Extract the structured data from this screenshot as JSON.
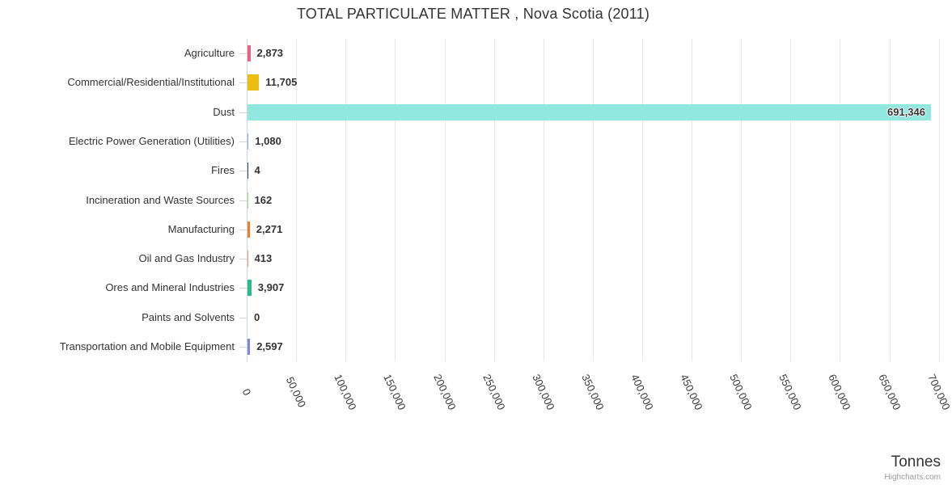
{
  "chart": {
    "title": "TOTAL PARTICULATE MATTER , Nova Scotia (2011)",
    "axis_title": "Tonnes",
    "credits": "Highcharts.com"
  },
  "chart_data": {
    "type": "bar",
    "orientation": "horizontal",
    "title": "TOTAL PARTICULATE MATTER , Nova Scotia (2011)",
    "categories": [
      "Agriculture",
      "Commercial/Residential/Institutional",
      "Dust",
      "Electric Power Generation (Utilities)",
      "Fires",
      "Incineration and Waste Sources",
      "Manufacturing",
      "Oil and Gas Industry",
      "Ores and Mineral Industries",
      "Paints and Solvents",
      "Transportation and Mobile Equipment"
    ],
    "values": [
      2873,
      11705,
      691346,
      1080,
      4,
      162,
      2271,
      413,
      3907,
      0,
      2597
    ],
    "value_labels": [
      "2,873",
      "11,705",
      "691,346",
      "1,080",
      "4",
      "162",
      "2,271",
      "413",
      "3,907",
      "0",
      "2,597"
    ],
    "colors": [
      "#ee5f80",
      "#ecbe13",
      "#91e8e1",
      "#7cb5ec",
      "#434348",
      "#90ed7d",
      "#ef7d20",
      "#f7a35c",
      "#28bd87",
      "#e4d354",
      "#8085e9"
    ],
    "xlabel": "Tonnes",
    "xlim": [
      0,
      700000
    ],
    "tick_interval": 50000,
    "tick_labels": [
      "0",
      "50,000",
      "100,000",
      "150,000",
      "200,000",
      "250,000",
      "300,000",
      "350,000",
      "400,000",
      "450,000",
      "500,000",
      "550,000",
      "600,000",
      "650,000",
      "700,000"
    ],
    "grid": true,
    "legend": "none",
    "accent_colors": {
      "axis_line": "#ccd6eb",
      "grid_line": "#e6e6e6",
      "text": "#333333",
      "credits": "#999999"
    }
  }
}
